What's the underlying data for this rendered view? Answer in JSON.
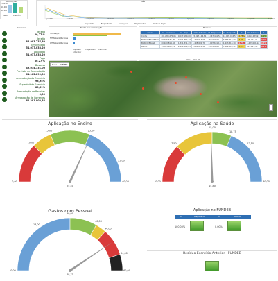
{
  "top_left_chart": {
    "title": "Aplicações",
    "ticks": [
      "1.000.000",
      "800.000",
      "600.000"
    ],
    "legend": [
      "Saldo",
      "Exercício"
    ]
  },
  "mes_chart": {
    "title": "Mês",
    "ticks": [
      "jan/2021",
      "fev/2021",
      "mar/2021",
      "abr/2021",
      "mai/2021",
      "jun/2021",
      "jul/2021",
      "ago/2021",
      "set/2021",
      "out/2021",
      "nov/2021",
      "dez/2021"
    ],
    "legend": [
      "Liquidado",
      "Empenhado",
      "Inscrições",
      "Pagamentos",
      "Restos a Pagar"
    ]
  },
  "kpis": {
    "header": "Recursos",
    "items": [
      {
        "label": "Receita",
        "value": "80,77 %"
      },
      {
        "label": "Receita",
        "value": "86.983.737,80"
      },
      {
        "label": "Empenhado",
        "value": "54.037.033,20"
      },
      {
        "label": "Liquidado",
        "value": "54.037.033,20"
      },
      {
        "label": "Pago",
        "value": "80,27 %"
      },
      {
        "label": "Despesa",
        "value": "49.034.131,00"
      },
      {
        "label": "Previsão de Arrecadação",
        "value": "64.182.899,00"
      },
      {
        "label": "Arrecadação do Exercício",
        "value": "98,94%"
      },
      {
        "label": "Superávit do Exercício",
        "value": "80,59%"
      },
      {
        "label": "Arrecadação de Receitas",
        "value": "0,00"
      },
      {
        "label": "Arrecadação de Correntes",
        "value": "64.281.902,38"
      }
    ]
  },
  "fonte_chart": {
    "title": "Fonte por vinculação",
    "labels": [
      "5 Educação",
      "5 FMS Saúde/Recursos",
      "4 FMS Saúde/Recursos"
    ],
    "legend": [
      "Liquidado",
      "Empenhado",
      "Inscrições",
      "A Receber"
    ]
  },
  "table": {
    "title": "Bancos",
    "headers": [
      "Banco",
      "Vl. Liquidado",
      "Vl. Pago",
      "Saldo Anterior",
      "Vl. Disponível",
      "Vl. Bloqueado",
      "%",
      "Vl. Aplicado",
      "%"
    ],
    "rows": [
      [
        "Conta",
        "201.680.271,01",
        "9.047.180,00",
        "15.827.114,81",
        "3.447.481,54",
        "12.005.016,57",
        "2,78%",
        "9.017.283,91",
        "1.1%"
      ],
      [
        "BANCO BRADESCO",
        "99.935.431,05",
        "3.011.862,13",
        "1.780.613,06",
        "150.000,00",
        "7.483.413,40",
        "3,4%",
        "125.013,21",
        "0,2%"
      ],
      [
        "BANCO BRASIL",
        "80.100.814,02",
        "1.371.831,43",
        "1.438.631,71",
        "3.007.631,18",
        "1.473.813,10",
        "2,7%",
        "1.423.001,12",
        "0,3%"
      ],
      [
        "Banco",
        "13.543.102,11",
        "2.411.801,23",
        "1.831.011,52",
        "330.310,20",
        "7.182.814,11",
        "0,3%",
        "611.221,30",
        "0,1%"
      ]
    ],
    "footer": "Mapa · Ver 20"
  },
  "map": {
    "tabs": [
      "Mapa",
      "Satélite"
    ]
  },
  "gauges": [
    {
      "title": "Aplicação no Ensino",
      "ticks": [
        "0,00",
        "10,00",
        "15,00",
        "25,00",
        "35,00",
        "40,00"
      ],
      "value": 25.5,
      "reading": "25,50",
      "min": 0,
      "max": 40
    },
    {
      "title": "Aplicação na Saúde",
      "ticks": [
        "0,00",
        "7,50",
        "15,00",
        "18,75",
        "22,50",
        "30,00"
      ],
      "value": 14.8,
      "reading": "14,80",
      "min": 0,
      "max": 30
    },
    {
      "title": "Gastos com Pessoal",
      "ticks": [
        "0,00",
        "18,00",
        "30,00",
        "40,00",
        "44,00",
        "54,00",
        "60,00"
      ],
      "value": 48.7,
      "reading": "48,71",
      "min": 0,
      "max": 60
    }
  ],
  "fundeb": {
    "title": "Aplicação no FUNDEB",
    "headers": [
      "%",
      "Magistério",
      "%",
      "Outros"
    ],
    "values": [
      "100,00%",
      "0,00%"
    ]
  },
  "residuo": {
    "title": "Resíduo Exercício Anterior - FUNDEB"
  },
  "colors": {
    "red": "#d93a3a",
    "yellow": "#e8c53a",
    "green": "#8cc152",
    "blue": "#6aa0d6",
    "black": "#222222",
    "gray": "#9a9a9a",
    "header_blue": "#2f6fb3",
    "kpi_green": "#1e5c1e"
  }
}
